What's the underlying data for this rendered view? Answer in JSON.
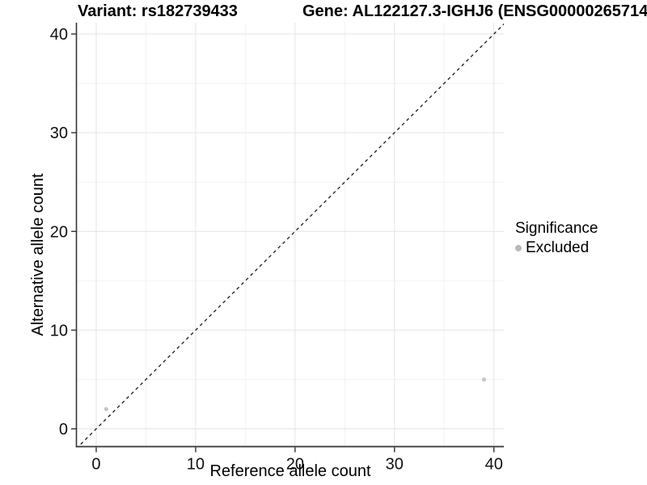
{
  "chart_data": {
    "type": "scatter",
    "title_left": "Variant: rs182739433",
    "title_right": "Gene: AL122127.3-IGHJ6 (ENSG00000265714",
    "xlabel": "Reference allele count",
    "ylabel": "Alternative allele count",
    "x_ticks": [
      0,
      10,
      20,
      30,
      40
    ],
    "y_ticks": [
      0,
      10,
      20,
      30,
      40
    ],
    "x_minor_ticks": [
      5,
      15,
      25,
      35
    ],
    "y_minor_ticks": [
      5,
      15,
      25,
      35
    ],
    "xlim": [
      -1.95,
      41.0
    ],
    "ylim": [
      -1.8,
      41.15
    ],
    "grid": true,
    "legend_position": "right",
    "series": [
      {
        "name": "Excluded",
        "color": "#bfbfbf",
        "point_radius": 2.6,
        "points": [
          {
            "x": 39,
            "y": 5
          },
          {
            "x": 1,
            "y": 2
          }
        ]
      }
    ],
    "reference_line": {
      "type": "identity y=x",
      "style": "dashed",
      "color": "#1a1a1a"
    },
    "legend": {
      "title": "Significance",
      "items": [
        {
          "label": "Excluded",
          "color": "#b9b9b9"
        }
      ]
    },
    "colors": {
      "background": "#ffffff",
      "grid_major": "#e4e4e4",
      "grid_minor": "#f2f2f2",
      "axis_line": "#333333",
      "tick_mark": "#333333",
      "tick_label": "#111111"
    }
  }
}
